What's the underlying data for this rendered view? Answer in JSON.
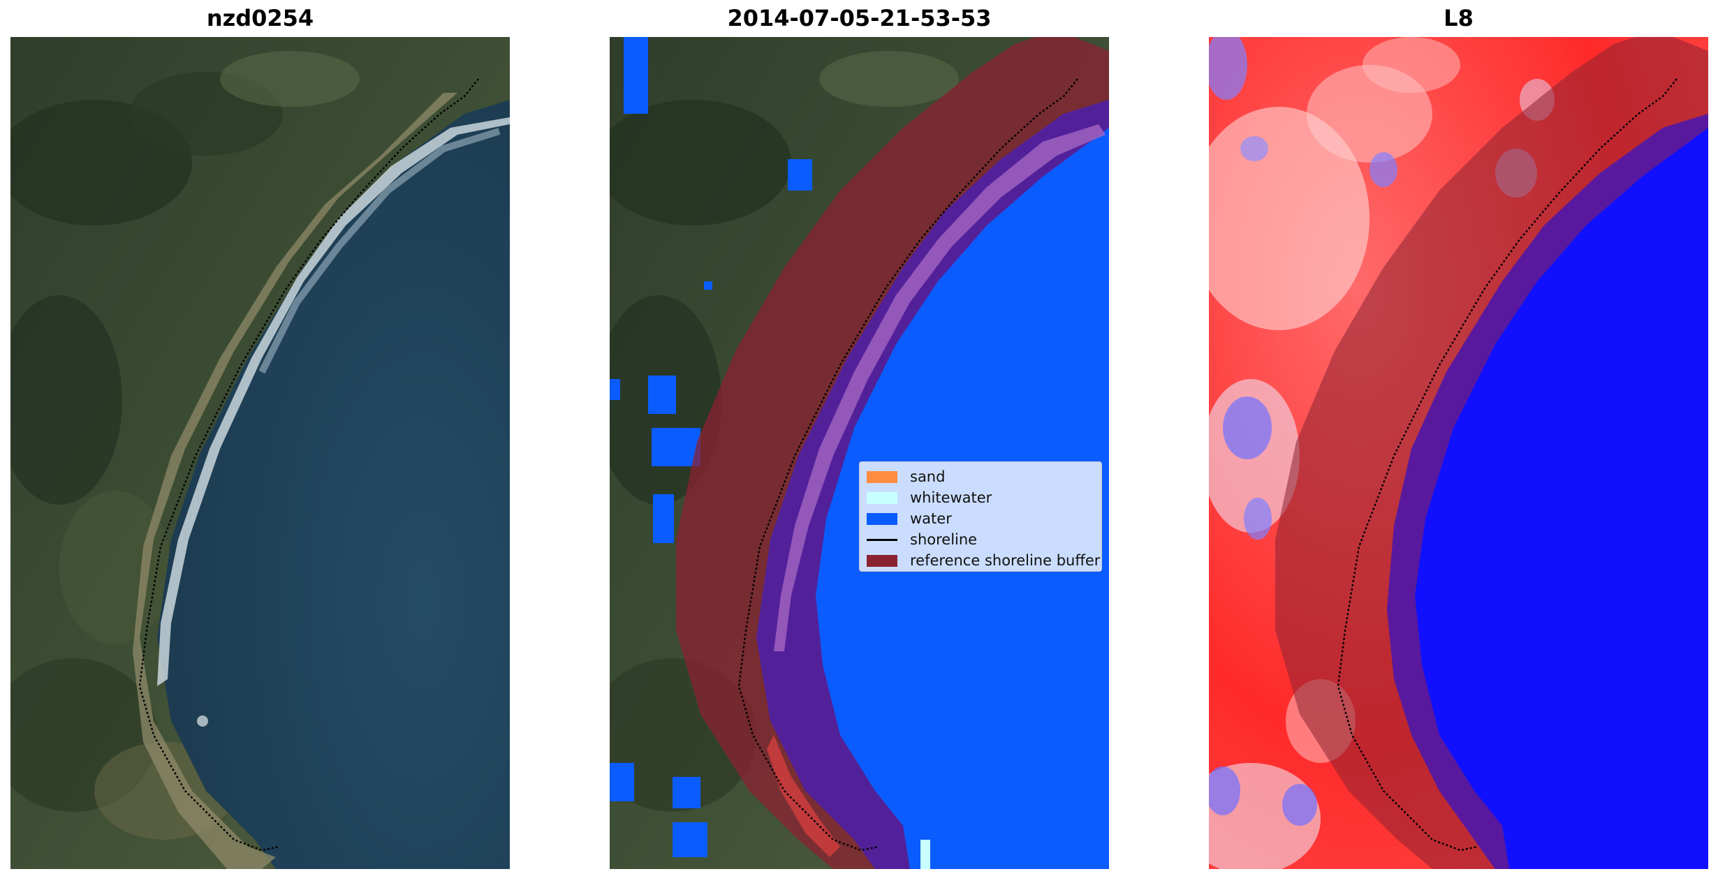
{
  "panels": [
    {
      "title": "nzd0254"
    },
    {
      "title": "2014-07-05-21-53-53"
    },
    {
      "title": "L8"
    }
  ],
  "legend": {
    "items": [
      {
        "label": "sand",
        "color": "#ff8c40",
        "kind": "patch"
      },
      {
        "label": "whitewater",
        "color": "#c8ffff",
        "kind": "patch"
      },
      {
        "label": "water",
        "color": "#0a5cff",
        "kind": "patch"
      },
      {
        "label": "shoreline",
        "color": "#000000",
        "kind": "line"
      },
      {
        "label": "reference shoreline buffer",
        "color": "#8b2232",
        "kind": "patch"
      }
    ]
  },
  "colors": {
    "water": "#0a5cff",
    "sand": "#ff8c40",
    "whitewater": "#c8ffff",
    "buffer": "#8b2232",
    "classifier_land": "#ff2020",
    "classifier_water": "#1010ff"
  }
}
